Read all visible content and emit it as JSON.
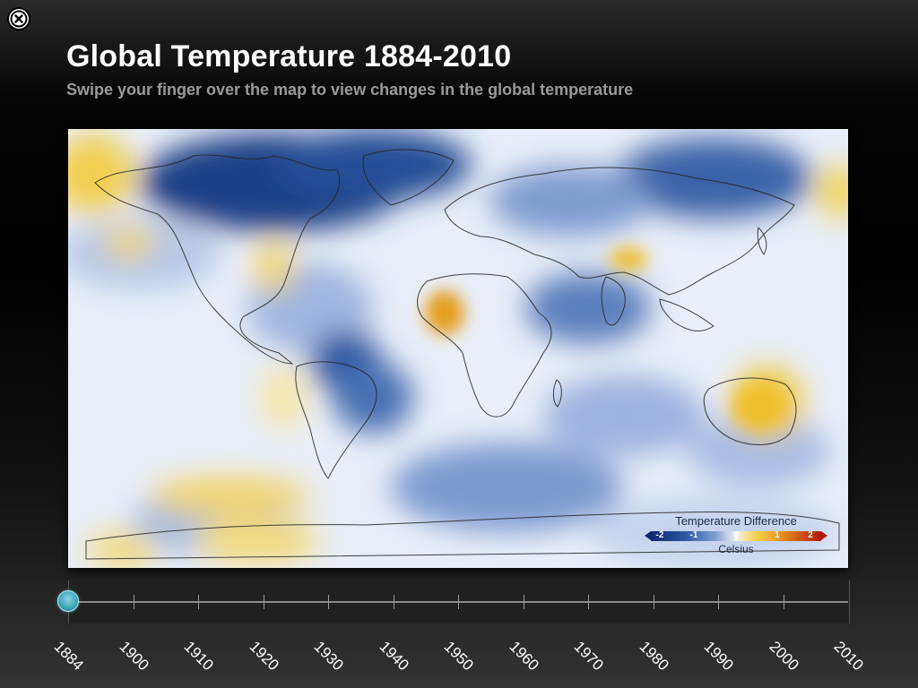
{
  "header": {
    "title": "Global Temperature 1884-2010",
    "subtitle": "Swipe your finger over the map to view changes in the global temperature"
  },
  "close_button": {
    "icon": "close-icon"
  },
  "legend": {
    "title": "Temperature Difference",
    "ticks": [
      "-2",
      "-1",
      "0",
      "1",
      "2"
    ],
    "unit": "Celsius",
    "colors": {
      "cold": "#0c2a6e",
      "neutral": "#f2f2f0",
      "warm": "#f4d04a",
      "hot": "#b1180b"
    }
  },
  "timeline": {
    "years": [
      "1884",
      "1900",
      "1910",
      "1920",
      "1930",
      "1940",
      "1950",
      "1960",
      "1970",
      "1980",
      "1990",
      "2000",
      "2010"
    ],
    "selected_year": "1884",
    "thumb_color": "#3aa3b8"
  }
}
